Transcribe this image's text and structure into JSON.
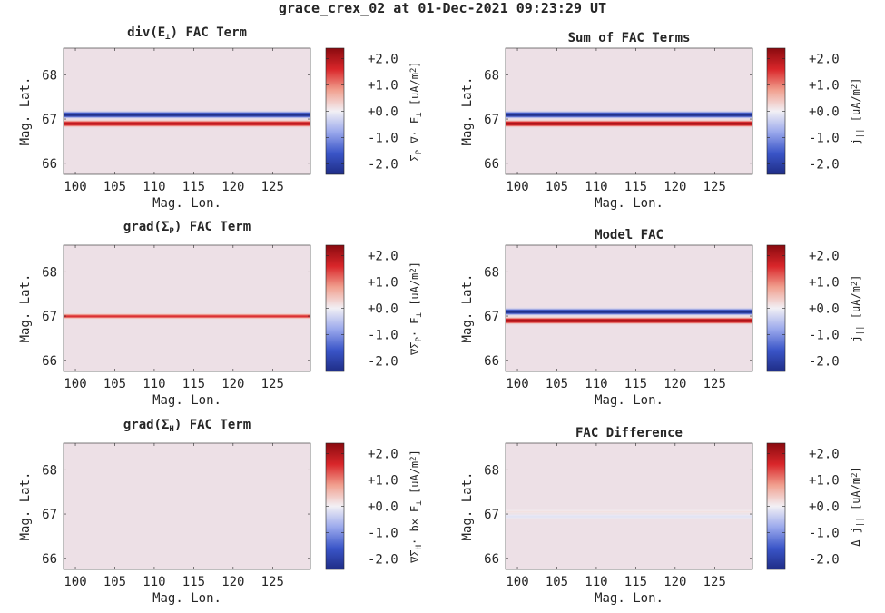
{
  "figure_title": "grace_crex_02 at 01-Dec-2021 09:23:29 UT",
  "colormap": {
    "name": "diverging blue-white-red",
    "stops": [
      "#1f2d86",
      "#3a55c8",
      "#9aa8ec",
      "#f2f0f5",
      "#f1a08f",
      "#d9262a",
      "#8a0a0f"
    ]
  },
  "background_value_color": "#ede0e6",
  "chart_data": [
    {
      "type": "heatmap",
      "title": "div(E⊥) FAC Term",
      "title_parts": {
        "pre": "div(E",
        "sub": "⊥",
        "post": ") FAC Term"
      },
      "xlabel": "Mag. Lon.",
      "ylabel": "Mag. Lat.",
      "xticks": [
        "100",
        "105",
        "110",
        "115",
        "120",
        "125"
      ],
      "yticks": [
        "66",
        "67",
        "68"
      ],
      "xlim": [
        98.5,
        129.8
      ],
      "ylim": [
        65.75,
        68.6
      ],
      "colorbar": {
        "label": "ΣP ∇· E⊥ [uA/m2]",
        "label_parts": [
          [
            "Σ",
            ""
          ],
          [
            "P",
            "sub"
          ],
          [
            " ∇· E",
            ""
          ],
          [
            "⊥",
            "sub"
          ],
          [
            "  [uA/m",
            ""
          ],
          [
            "2",
            "sup"
          ],
          [
            "]",
            ""
          ]
        ],
        "ticks": [
          "+2.0",
          "+1.0",
          "+0.0",
          "-1.0",
          "-2.0"
        ],
        "range": [
          -2.4,
          2.4
        ]
      },
      "bands": [
        {
          "lat": 67.1,
          "width": 0.07,
          "value": -2.4
        },
        {
          "lat": 66.9,
          "width": 0.07,
          "value": 2.0
        }
      ]
    },
    {
      "type": "heatmap",
      "title": "Sum of FAC Terms",
      "title_parts": {
        "pre": "Sum of FAC Terms",
        "sub": "",
        "post": ""
      },
      "xlabel": "Mag. Lon.",
      "ylabel": "Mag. Lat.",
      "xticks": [
        "100",
        "105",
        "110",
        "115",
        "120",
        "125"
      ],
      "yticks": [
        "66",
        "67",
        "68"
      ],
      "xlim": [
        98.5,
        129.8
      ],
      "ylim": [
        65.75,
        68.6
      ],
      "colorbar": {
        "label": "j|| [uA/m2]",
        "label_parts": [
          [
            "j",
            ""
          ],
          [
            "||",
            "sub"
          ],
          [
            "  [uA/m",
            ""
          ],
          [
            "2",
            "sup"
          ],
          [
            "]",
            ""
          ]
        ],
        "ticks": [
          "+2.0",
          "+1.0",
          "+0.0",
          "-1.0",
          "-2.0"
        ],
        "range": [
          -2.4,
          2.4
        ]
      },
      "bands": [
        {
          "lat": 67.1,
          "width": 0.07,
          "value": -2.4
        },
        {
          "lat": 66.9,
          "width": 0.07,
          "value": 2.2
        }
      ]
    },
    {
      "type": "heatmap",
      "title": "grad(ΣP) FAC Term",
      "title_parts": {
        "pre": "grad(Σ",
        "sub": "P",
        "post": ") FAC Term"
      },
      "xlabel": "Mag. Lon.",
      "ylabel": "Mag. Lat.",
      "xticks": [
        "100",
        "105",
        "110",
        "115",
        "120",
        "125"
      ],
      "yticks": [
        "66",
        "67",
        "68"
      ],
      "xlim": [
        98.5,
        129.8
      ],
      "ylim": [
        65.75,
        68.6
      ],
      "colorbar": {
        "label": "∇ΣP· E⊥ [uA/m2]",
        "label_parts": [
          [
            "∇Σ",
            ""
          ],
          [
            "P",
            "sub"
          ],
          [
            "· E",
            ""
          ],
          [
            "⊥",
            "sub"
          ],
          [
            "  [uA/m",
            ""
          ],
          [
            "2",
            "sup"
          ],
          [
            "]",
            ""
          ]
        ],
        "ticks": [
          "+2.0",
          "+1.0",
          "+0.0",
          "-1.0",
          "-2.0"
        ],
        "range": [
          -2.4,
          2.4
        ]
      },
      "bands": [
        {
          "lat": 67.0,
          "width": 0.05,
          "value": 1.6
        }
      ]
    },
    {
      "type": "heatmap",
      "title": "Model FAC",
      "title_parts": {
        "pre": "Model FAC",
        "sub": "",
        "post": ""
      },
      "xlabel": "Mag. Lon.",
      "ylabel": "Mag. Lat.",
      "xticks": [
        "100",
        "105",
        "110",
        "115",
        "120",
        "125"
      ],
      "yticks": [
        "66",
        "67",
        "68"
      ],
      "xlim": [
        98.5,
        129.8
      ],
      "ylim": [
        65.75,
        68.6
      ],
      "colorbar": {
        "label": "j|| [uA/m2]",
        "label_parts": [
          [
            "j",
            ""
          ],
          [
            "||",
            "sub"
          ],
          [
            "  [uA/m",
            ""
          ],
          [
            "2",
            "sup"
          ],
          [
            "]",
            ""
          ]
        ],
        "ticks": [
          "+2.0",
          "+1.0",
          "+0.0",
          "-1.0",
          "-2.0"
        ],
        "range": [
          -2.4,
          2.4
        ]
      },
      "bands": [
        {
          "lat": 67.1,
          "width": 0.07,
          "value": -2.4
        },
        {
          "lat": 66.9,
          "width": 0.07,
          "value": 2.2
        }
      ]
    },
    {
      "type": "heatmap",
      "title": "grad(ΣH) FAC Term",
      "title_parts": {
        "pre": "grad(Σ",
        "sub": "H",
        "post": ") FAC Term"
      },
      "xlabel": "Mag. Lon.",
      "ylabel": "Mag. Lat.",
      "xticks": [
        "100",
        "105",
        "110",
        "115",
        "120",
        "125"
      ],
      "yticks": [
        "66",
        "67",
        "68"
      ],
      "xlim": [
        98.5,
        129.8
      ],
      "ylim": [
        65.75,
        68.6
      ],
      "colorbar": {
        "label": "∇ΣH· b× E⊥ [uA/m2]",
        "label_parts": [
          [
            "∇Σ",
            ""
          ],
          [
            "H",
            "sub"
          ],
          [
            "· b× E",
            ""
          ],
          [
            "⊥",
            "sub"
          ],
          [
            "  [uA/m",
            ""
          ],
          [
            "2",
            "sup"
          ],
          [
            "]",
            ""
          ]
        ],
        "ticks": [
          "+2.0",
          "+1.0",
          "+0.0",
          "-1.0",
          "-2.0"
        ],
        "range": [
          -2.4,
          2.4
        ]
      },
      "bands": []
    },
    {
      "type": "heatmap",
      "title": "FAC Difference",
      "title_parts": {
        "pre": "FAC Difference",
        "sub": "",
        "post": ""
      },
      "xlabel": "Mag. Lon.",
      "ylabel": "Mag. Lat.",
      "xticks": [
        "100",
        "105",
        "110",
        "115",
        "120",
        "125"
      ],
      "yticks": [
        "66",
        "67",
        "68"
      ],
      "xlim": [
        98.5,
        129.8
      ],
      "ylim": [
        65.75,
        68.6
      ],
      "colorbar": {
        "label": "Δ j|| [uA/m2]",
        "label_parts": [
          [
            "Δ j",
            ""
          ],
          [
            "||",
            "sub"
          ],
          [
            "  [uA/m",
            ""
          ],
          [
            "2",
            "sup"
          ],
          [
            "]",
            ""
          ]
        ],
        "ticks": [
          "+2.0",
          "+1.0",
          "+0.0",
          "-1.0",
          "-2.0"
        ],
        "range": [
          -2.4,
          2.4
        ]
      },
      "bands": [
        {
          "lat": 67.06,
          "width": 0.03,
          "value": 0.15
        },
        {
          "lat": 66.95,
          "width": 0.04,
          "value": -0.15
        }
      ]
    }
  ]
}
